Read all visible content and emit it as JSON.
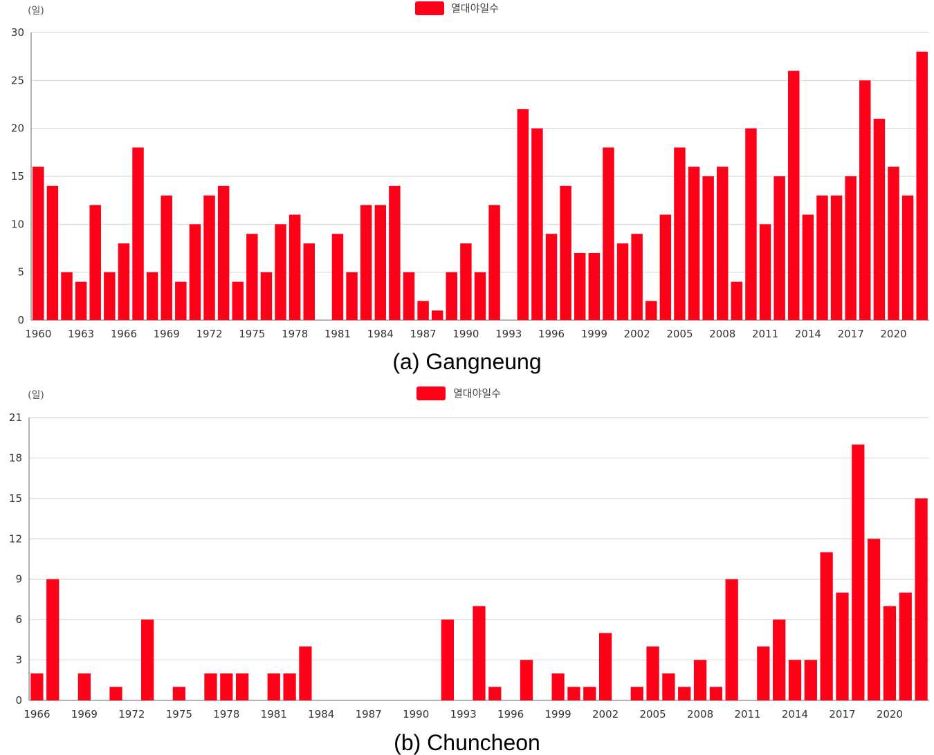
{
  "chart_data": [
    {
      "type": "bar",
      "unit_label": "(일)",
      "legend": "열대야일수",
      "caption": "(a) Gangneung",
      "color": "#ff0019",
      "ylim": [
        0,
        30
      ],
      "yticks": [
        0,
        5,
        10,
        15,
        20,
        25,
        30
      ],
      "xtick_labels": [
        "1960",
        "1963",
        "1966",
        "1969",
        "1972",
        "1975",
        "1978",
        "1981",
        "1984",
        "1987",
        "1990",
        "1993",
        "1996",
        "1999",
        "2002",
        "2005",
        "2008",
        "2011",
        "2014",
        "2017",
        "2020"
      ],
      "grid": true,
      "legend_position": "top-center",
      "series": [
        {
          "name": "열대야일수",
          "x": [
            1960,
            1961,
            1962,
            1963,
            1964,
            1965,
            1966,
            1967,
            1968,
            1969,
            1970,
            1971,
            1972,
            1973,
            1974,
            1975,
            1976,
            1977,
            1978,
            1979,
            1980,
            1981,
            1982,
            1983,
            1984,
            1985,
            1986,
            1987,
            1988,
            1989,
            1990,
            1991,
            1992,
            1993,
            1994,
            1995,
            1996,
            1997,
            1998,
            1999,
            2000,
            2001,
            2002,
            2003,
            2004,
            2005,
            2006,
            2007,
            2008,
            2009,
            2010,
            2011,
            2012,
            2013,
            2014,
            2015,
            2016,
            2017,
            2018,
            2019,
            2020,
            2021,
            2022
          ],
          "values": [
            16,
            14,
            5,
            4,
            12,
            5,
            8,
            18,
            5,
            13,
            4,
            10,
            13,
            14,
            4,
            9,
            5,
            10,
            11,
            8,
            0,
            9,
            5,
            12,
            12,
            14,
            5,
            2,
            1,
            5,
            8,
            5,
            12,
            0,
            22,
            20,
            9,
            14,
            7,
            7,
            18,
            8,
            9,
            2,
            11,
            18,
            16,
            15,
            16,
            4,
            20,
            10,
            15,
            26,
            11,
            13,
            13,
            15,
            25,
            21,
            16,
            13,
            28
          ]
        }
      ]
    },
    {
      "type": "bar",
      "unit_label": "(일)",
      "legend": "열대야일수",
      "caption": "(b) Chuncheon",
      "color": "#ff0019",
      "ylim": [
        0,
        21
      ],
      "yticks": [
        0,
        3,
        6,
        9,
        12,
        15,
        18,
        21
      ],
      "xtick_labels": [
        "1966",
        "1969",
        "1972",
        "1975",
        "1978",
        "1981",
        "1984",
        "1987",
        "1990",
        "1993",
        "1996",
        "1999",
        "2002",
        "2005",
        "2008",
        "2011",
        "2014",
        "2017",
        "2020"
      ],
      "grid": true,
      "legend_position": "top-center",
      "series": [
        {
          "name": "열대야일수",
          "x": [
            1966,
            1967,
            1968,
            1969,
            1970,
            1971,
            1972,
            1973,
            1974,
            1975,
            1976,
            1977,
            1978,
            1979,
            1980,
            1981,
            1982,
            1983,
            1984,
            1985,
            1986,
            1987,
            1988,
            1989,
            1990,
            1991,
            1992,
            1993,
            1994,
            1995,
            1996,
            1997,
            1998,
            1999,
            2000,
            2001,
            2002,
            2003,
            2004,
            2005,
            2006,
            2007,
            2008,
            2009,
            2010,
            2011,
            2012,
            2013,
            2014,
            2015,
            2016,
            2017,
            2018,
            2019,
            2020,
            2021,
            2022
          ],
          "values": [
            2,
            9,
            0,
            2,
            0,
            1,
            0,
            6,
            0,
            1,
            0,
            2,
            2,
            2,
            0,
            2,
            2,
            4,
            0,
            0,
            0,
            0,
            0,
            0,
            0,
            0,
            6,
            0,
            7,
            1,
            0,
            3,
            0,
            2,
            1,
            1,
            5,
            0,
            1,
            4,
            2,
            1,
            3,
            1,
            9,
            0,
            4,
            6,
            3,
            3,
            11,
            8,
            19,
            12,
            7,
            8,
            15
          ]
        }
      ]
    }
  ]
}
